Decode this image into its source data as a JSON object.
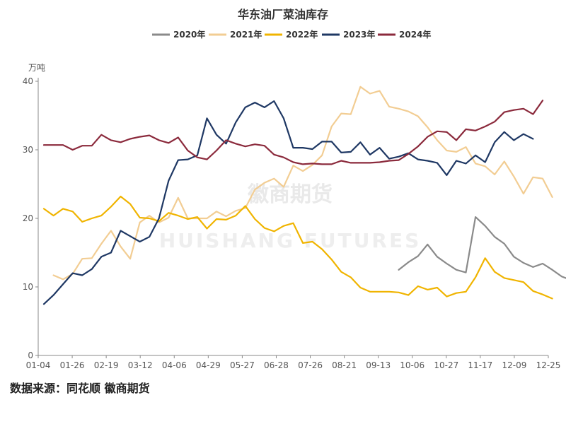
{
  "chart_data": {
    "type": "line",
    "title": "华东油厂菜油库存",
    "unit": "万吨",
    "ylim": [
      0,
      40
    ],
    "yticks": [
      0,
      10,
      20,
      30,
      40
    ],
    "x_tick_labels": [
      "01-04",
      "01-26",
      "02-19",
      "03-12",
      "04-06",
      "04-29",
      "05-27",
      "06-28",
      "07-26",
      "08-21",
      "09-13",
      "10-06",
      "10-27",
      "11-17",
      "12-09",
      "12-25"
    ],
    "legend_position": "top-center",
    "grid": false,
    "watermark_cn": "徽商期货",
    "watermark_en": "HUISHANG FUTURES",
    "series": [
      {
        "name": "2020年",
        "color": "#8a8a8a",
        "start_week": 37,
        "values": [
          12.5,
          13.6,
          14.5,
          16.2,
          14.4,
          13.4,
          12.5,
          12.1,
          20.2,
          18.9,
          17.3,
          16.3,
          14.4,
          13.5,
          12.9,
          13.4,
          12.5,
          11.5,
          11.0,
          10.7,
          10.4
        ]
      },
      {
        "name": "2021年",
        "color": "#f2cd93",
        "start_week": 1,
        "values": [
          11.7,
          11.1,
          11.9,
          14.1,
          14.2,
          16.3,
          18.2,
          15.9,
          14.1,
          19.4,
          20.4,
          19.4,
          20.1,
          23.0,
          20.0,
          20.0,
          20.0,
          21.0,
          20.3,
          21.1,
          21.5,
          24.2,
          25.2,
          25.8,
          24.6,
          27.7,
          26.9,
          27.8,
          29.2,
          33.4,
          35.3,
          35.2,
          39.2,
          38.2,
          38.6,
          36.3,
          36.0,
          35.6,
          34.9,
          33.3,
          31.4,
          29.9,
          29.7,
          30.4,
          28.0,
          27.6,
          26.4,
          28.3,
          26.1,
          23.6,
          26.0,
          25.8,
          23.1
        ]
      },
      {
        "name": "2022年",
        "color": "#f0b400",
        "start_week": 0,
        "values": [
          21.4,
          20.4,
          21.4,
          21.0,
          19.5,
          20.0,
          20.4,
          21.7,
          23.2,
          22.1,
          20.1,
          20.0,
          19.6,
          20.8,
          20.4,
          19.9,
          20.2,
          18.5,
          19.9,
          19.8,
          20.4,
          21.8,
          19.9,
          18.6,
          18.1,
          18.9,
          19.3,
          16.4,
          16.6,
          15.5,
          14.0,
          12.2,
          11.4,
          9.9,
          9.3,
          9.3,
          9.3,
          9.2,
          8.8,
          10.1,
          9.6,
          9.9,
          8.6,
          9.1,
          9.3,
          11.4,
          14.2,
          12.2,
          11.3,
          11.0,
          10.7,
          9.4,
          8.9,
          8.3
        ]
      },
      {
        "name": "2023年",
        "color": "#1f3864",
        "start_week": 0,
        "values": [
          7.5,
          8.8,
          10.4,
          12.0,
          11.7,
          12.6,
          14.4,
          15.0,
          18.2,
          17.4,
          16.6,
          17.3,
          20.0,
          25.5,
          28.5,
          28.6,
          29.2,
          34.6,
          32.2,
          30.9,
          34.0,
          36.2,
          36.9,
          36.2,
          37.1,
          34.6,
          30.3,
          30.3,
          30.1,
          31.2,
          31.2,
          29.6,
          29.7,
          31.1,
          29.3,
          30.3,
          28.7,
          29.0,
          29.5,
          28.6,
          28.4,
          28.1,
          26.3,
          28.4,
          28.0,
          29.2,
          28.2,
          31.1,
          32.6,
          31.4,
          32.3,
          31.6
        ]
      },
      {
        "name": "2024年",
        "color": "#8b2a3c",
        "start_week": 0,
        "values": [
          30.7,
          30.7,
          30.7,
          30.0,
          30.6,
          30.6,
          32.2,
          31.4,
          31.1,
          31.6,
          31.9,
          32.1,
          31.4,
          31.0,
          31.8,
          29.9,
          28.9,
          28.6,
          29.9,
          31.4,
          30.9,
          30.5,
          30.8,
          30.6,
          29.3,
          28.9,
          28.2,
          27.9,
          28.0,
          27.9,
          27.9,
          28.4,
          28.1,
          28.1,
          28.1,
          28.2,
          28.4,
          28.5,
          29.4,
          30.5,
          31.9,
          32.7,
          32.6,
          31.4,
          33.0,
          32.8,
          33.4,
          34.1,
          35.5,
          35.8,
          36.0,
          35.2,
          37.2
        ]
      }
    ]
  },
  "footer": {
    "source": "数据来源：同花顺 徽商期货"
  }
}
